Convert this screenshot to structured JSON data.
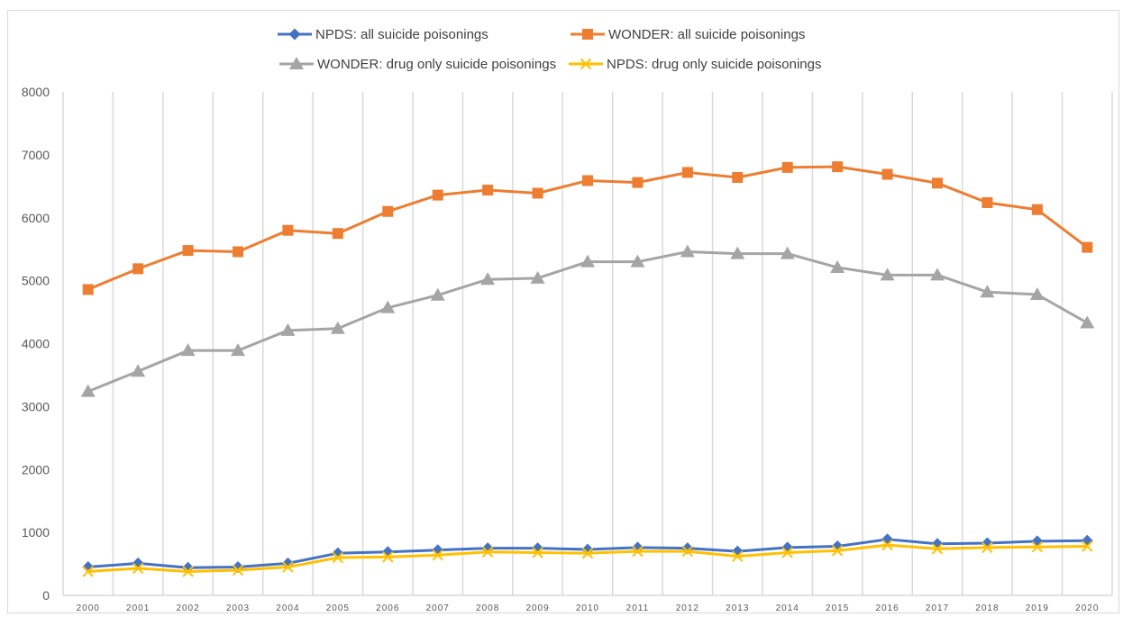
{
  "chart_data": {
    "type": "line",
    "title": "",
    "xlabel": "",
    "ylabel": "",
    "ylim": [
      0,
      8000
    ],
    "yticks": [
      "0",
      "1000",
      "2000",
      "3000",
      "4000",
      "5000",
      "6000",
      "7000",
      "8000"
    ],
    "grid": "vertical",
    "legend_position": "top",
    "categories": [
      "2000",
      "2001",
      "2002",
      "2003",
      "2004",
      "2005",
      "2006",
      "2007",
      "2008",
      "2009",
      "2010",
      "2011",
      "2012",
      "2013",
      "2014",
      "2015",
      "2016",
      "2017",
      "2018",
      "2019",
      "2020"
    ],
    "series": [
      {
        "name": "NPDS: all suicide poisonings",
        "color": "#4472c4",
        "marker": "diamond",
        "values": [
          450,
          510,
          440,
          450,
          510,
          670,
          690,
          720,
          750,
          750,
          730,
          760,
          750,
          700,
          760,
          780,
          890,
          820,
          830,
          860,
          870
        ]
      },
      {
        "name": "WONDER: all suicide poisonings",
        "color": "#ed7d31",
        "marker": "square",
        "values": [
          4860,
          5190,
          5480,
          5460,
          5800,
          5750,
          6100,
          6360,
          6440,
          6390,
          6590,
          6560,
          6720,
          6640,
          6800,
          6810,
          6690,
          6550,
          6240,
          6130,
          5530
        ]
      },
      {
        "name": "WONDER: drug only suicide poisonings",
        "color": "#a5a5a5",
        "marker": "triangle",
        "values": [
          3240,
          3560,
          3890,
          3890,
          4210,
          4240,
          4570,
          4770,
          5020,
          5040,
          5300,
          5300,
          5460,
          5430,
          5430,
          5210,
          5090,
          5090,
          4820,
          4780,
          4330
        ]
      },
      {
        "name": "NPDS: drug only suicide poisonings",
        "color": "#ffc000",
        "marker": "x",
        "values": [
          380,
          430,
          380,
          400,
          450,
          600,
          610,
          640,
          690,
          680,
          670,
          700,
          700,
          620,
          680,
          710,
          800,
          740,
          760,
          770,
          780
        ]
      }
    ]
  }
}
